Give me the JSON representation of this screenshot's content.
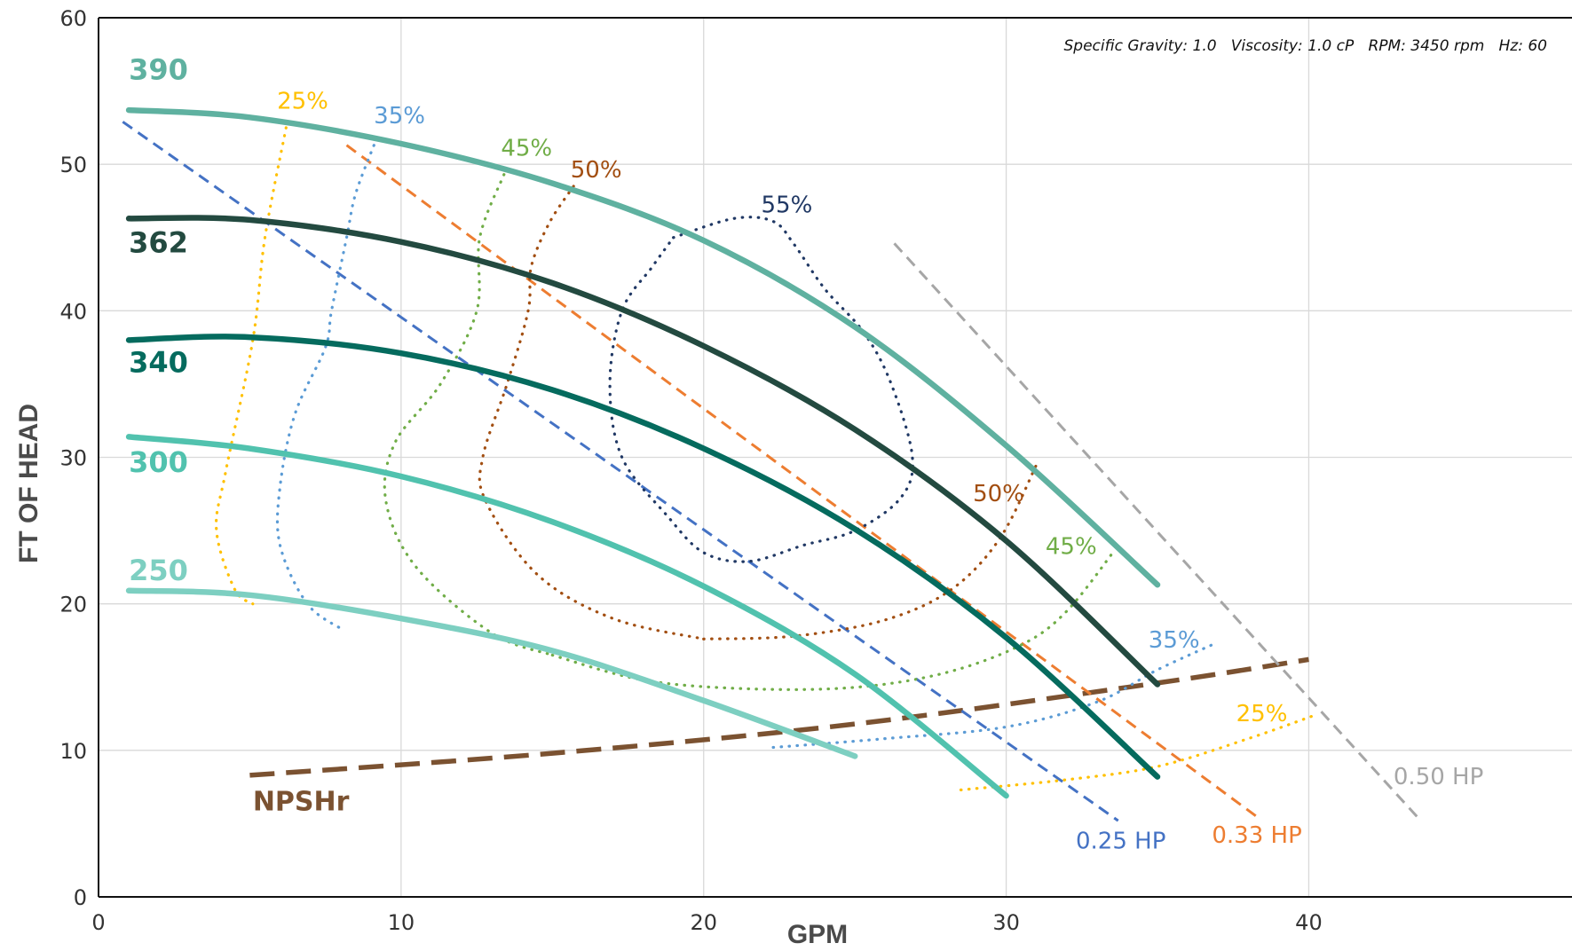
{
  "chart_data": {
    "type": "line",
    "xlabel": "GPM",
    "ylabel": "FT OF HEAD",
    "xlim": [
      0,
      48.7
    ],
    "ylim": [
      0,
      60
    ],
    "xticks": [
      0,
      10,
      20,
      30,
      40
    ],
    "yticks": [
      0,
      10,
      20,
      30,
      40,
      50,
      60
    ],
    "grid": true,
    "legend": "none",
    "note": "Specific Gravity: 1.0   Viscosity: 1.0 cP   RPM: 3450 rpm   Hz: 60",
    "curves": [
      {
        "name": "390",
        "kind": "impeller",
        "color": "#5fb1a0",
        "x": [
          1,
          5,
          10,
          15,
          20,
          25,
          30,
          35
        ],
        "y": [
          53.7,
          53.2,
          51.4,
          48.7,
          44.8,
          38.9,
          30.8,
          21.3
        ]
      },
      {
        "name": "362",
        "kind": "impeller",
        "color": "#234a40",
        "x": [
          1,
          5,
          10,
          15,
          20,
          25,
          30,
          35
        ],
        "y": [
          46.3,
          46.2,
          44.7,
          41.9,
          37.6,
          31.9,
          24.3,
          14.5
        ]
      },
      {
        "name": "340",
        "kind": "impeller",
        "color": "#056b5e",
        "x": [
          1,
          5,
          10,
          15,
          20,
          25,
          30,
          35
        ],
        "y": [
          38.0,
          38.2,
          37.1,
          34.6,
          30.6,
          25.1,
          17.7,
          8.2
        ]
      },
      {
        "name": "300",
        "kind": "impeller",
        "color": "#51c2ae",
        "x": [
          1,
          5,
          10,
          15,
          20,
          25,
          30
        ],
        "y": [
          31.4,
          30.6,
          28.7,
          25.6,
          21.2,
          15.2,
          6.9
        ]
      },
      {
        "name": "250",
        "kind": "impeller",
        "color": "#7dcfc1",
        "x": [
          1,
          5,
          10,
          15,
          20,
          25
        ],
        "y": [
          20.9,
          20.6,
          19.0,
          16.8,
          13.4,
          9.6
        ]
      }
    ],
    "efficiency": [
      {
        "label": "25%",
        "color": "#ffc000",
        "left": {
          "x": [
            6.2,
            5.5,
            5.1,
            4.2,
            3.9,
            4.5,
            5.1
          ],
          "y": [
            52.5,
            45.0,
            38.0,
            29.0,
            25.0,
            21.0,
            20.0
          ]
        },
        "right": {
          "x": [
            28.5,
            32,
            35,
            38,
            40.2
          ],
          "y": [
            7.3,
            8.0,
            8.9,
            10.8,
            12.4
          ]
        }
      },
      {
        "label": "35%",
        "color": "#5b9bd5",
        "left": {
          "x": [
            9.2,
            8.5,
            8.2,
            7.7,
            7.5,
            6.5,
            6.0,
            6.0,
            6.9,
            8.1
          ],
          "y": [
            51.8,
            48.0,
            45.0,
            40.0,
            37.5,
            33.0,
            28.0,
            24.0,
            20.0,
            18.2
          ]
        },
        "right": {
          "x": [
            22.3,
            26,
            30,
            33,
            35,
            36.8
          ],
          "y": [
            10.2,
            10.8,
            11.6,
            13.3,
            15.5,
            17.2
          ]
        }
      },
      {
        "label": "45%",
        "color": "#70ad47",
        "left": {
          "x": [
            13.4,
            12.6,
            12.5,
            11.3,
            9.8,
            9.5,
            10.5,
            13.0,
            15.0
          ],
          "y": [
            49.3,
            45.0,
            40.0,
            35.0,
            31.0,
            27.0,
            22.5,
            18.0,
            16.5
          ]
        },
        "middle": {
          "x": [
            15,
            18,
            21.5,
            25,
            28,
            30.5,
            32,
            33.6
          ],
          "y": [
            16.5,
            14.8,
            14.2,
            14.3,
            15.3,
            17.2,
            19.5,
            23.7
          ]
        }
      },
      {
        "label": "50%",
        "color": "#a24e11",
        "left": {
          "x": [
            15.7,
            14.9,
            14.3,
            14.2,
            13.5,
            12.7,
            12.8,
            14.5,
            17.0,
            20.0
          ],
          "y": [
            48.5,
            46.0,
            43.0,
            40.0,
            35.0,
            30.0,
            27.0,
            22.0,
            19.0,
            17.6
          ]
        },
        "middle": {
          "x": [
            20,
            23,
            26,
            28.2,
            29.8,
            31.0
          ],
          "y": [
            17.6,
            17.8,
            18.9,
            21.0,
            24.5,
            29.5
          ]
        }
      },
      {
        "label": "55%",
        "color": "#203864",
        "x": [
          19.0,
          21.0,
          22.3,
          23.0,
          24.0,
          25.3,
          26.2,
          26.9,
          26.5,
          25.0,
          23.3,
          21.5,
          20.0,
          18.8,
          17.3,
          16.9,
          17.3,
          18.3,
          19.0
        ],
        "y": [
          45.0,
          46.3,
          46.1,
          44.5,
          41.5,
          38.5,
          35.0,
          30.0,
          27.2,
          25.0,
          24.0,
          22.9,
          23.5,
          26.0,
          30.0,
          35.0,
          40.0,
          43.0,
          45.0
        ]
      }
    ],
    "horsepower": [
      {
        "label": "0.25 HP",
        "color": "#4472c4",
        "x": [
          0.8,
          33.7
        ],
        "y": [
          52.9,
          5.2
        ]
      },
      {
        "label": "0.33 HP",
        "color": "#ed7d31",
        "x": [
          8.2,
          38.4
        ],
        "y": [
          51.3,
          5.3
        ]
      },
      {
        "label": "0.50 HP",
        "color": "#a6a6a6",
        "x": [
          26.3,
          43.7
        ],
        "y": [
          44.6,
          5.2
        ]
      }
    ],
    "npshr": {
      "label": "NPSHr",
      "color": "#7b5231",
      "x": [
        5,
        15,
        25,
        35,
        40
      ],
      "y": [
        8.3,
        9.8,
        11.8,
        14.6,
        16.2
      ]
    },
    "label_positions": {
      "impeller": [
        {
          "name": "390",
          "x": 1.0,
          "y": 55.8
        },
        {
          "name": "362",
          "x": 1.0,
          "y": 44.0
        },
        {
          "name": "340",
          "x": 1.0,
          "y": 35.8
        },
        {
          "name": "300",
          "x": 1.0,
          "y": 29.0
        },
        {
          "name": "250",
          "x": 1.0,
          "y": 21.6
        }
      ],
      "efficiency": [
        {
          "label": "25%",
          "x": 5.9,
          "y": 53.8
        },
        {
          "label": "35%",
          "x": 9.1,
          "y": 52.8
        },
        {
          "label": "45%",
          "x": 13.3,
          "y": 50.6
        },
        {
          "label": "50%",
          "x": 15.6,
          "y": 49.1
        },
        {
          "label": "55%",
          "x": 21.9,
          "y": 46.7
        },
        {
          "label": "50%",
          "x": 28.9,
          "y": 27.0
        },
        {
          "label": "45%",
          "x": 31.3,
          "y": 23.4
        },
        {
          "label": "35%",
          "x": 34.7,
          "y": 17.0
        },
        {
          "label": "25%",
          "x": 37.6,
          "y": 12.0
        }
      ],
      "horsepower": [
        {
          "label": "0.25 HP",
          "x": 32.3,
          "y": 3.3
        },
        {
          "label": "0.33 HP",
          "x": 36.8,
          "y": 3.7
        },
        {
          "label": "0.50 HP",
          "x": 42.8,
          "y": 7.7
        }
      ],
      "npshr": {
        "label": "NPSHr",
        "x": 5.1,
        "y": 5.9
      }
    }
  }
}
